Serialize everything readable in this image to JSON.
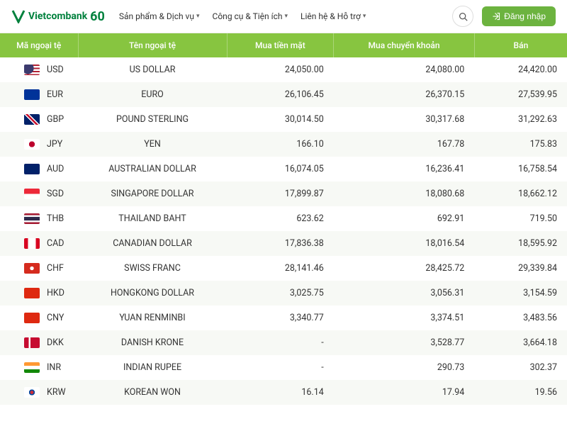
{
  "header": {
    "logo_text": "Vietcombank",
    "logo_badge": "60",
    "nav": [
      {
        "label": "Sản phẩm & Dịch vụ"
      },
      {
        "label": "Công cụ & Tiện ích"
      },
      {
        "label": "Liên hệ & Hỗ trợ"
      }
    ],
    "login_label": "Đăng nhập"
  },
  "table": {
    "columns": [
      "Mã ngoại tệ",
      "Tên ngoại tệ",
      "Mua tiền mặt",
      "Mua chuyển khoản",
      "Bán"
    ],
    "rows": [
      {
        "code": "USD",
        "flag_bg": "linear-gradient(180deg,#b22234 0 15%,#fff 15% 30%,#b22234 30% 45%,#fff 45% 60%,#b22234 60% 75%,#fff 75% 90%,#b22234 90% 100%)",
        "flag_overlay": "radial-gradient(circle at 25% 35%, #3c3b6e 42%, transparent 43%)",
        "name": "US DOLLAR",
        "cash": "24,050.00",
        "transfer": "24,080.00",
        "sell": "24,420.00"
      },
      {
        "code": "EUR",
        "flag_bg": "#003399",
        "name": "EURO",
        "cash": "26,106.45",
        "transfer": "26,370.15",
        "sell": "27,539.95"
      },
      {
        "code": "GBP",
        "flag_bg": "linear-gradient(45deg,#012169 40%,#fff 40% 45%,#c8102e 45% 55%,#fff 55% 60%,#012169 60%)",
        "name": "POUND STERLING",
        "cash": "30,014.50",
        "transfer": "30,317.68",
        "sell": "31,292.63"
      },
      {
        "code": "JPY",
        "flag_bg": "radial-gradient(circle at 50% 50%,#bc002d 30%,#fff 32%)",
        "name": "YEN",
        "cash": "166.10",
        "transfer": "167.78",
        "sell": "175.83"
      },
      {
        "code": "AUD",
        "flag_bg": "#012169",
        "name": "AUSTRALIAN DOLLAR",
        "cash": "16,074.05",
        "transfer": "16,236.41",
        "sell": "16,758.54"
      },
      {
        "code": "SGD",
        "flag_bg": "linear-gradient(180deg,#ed2939 50%,#fff 50%)",
        "name": "SINGAPORE DOLLAR",
        "cash": "17,899.87",
        "transfer": "18,080.68",
        "sell": "18,662.12"
      },
      {
        "code": "THB",
        "flag_bg": "linear-gradient(180deg,#a51931 0 17%,#f4f5f8 17% 33%,#2d2a4a 33% 67%,#f4f5f8 67% 83%,#a51931 83% 100%)",
        "name": "THAILAND BAHT",
        "cash": "623.62",
        "transfer": "692.91",
        "sell": "719.50"
      },
      {
        "code": "CAD",
        "flag_bg": "linear-gradient(90deg,#d80621 0 25%,#fff 25% 75%,#d80621 75% 100%)",
        "name": "CANADIAN DOLLAR",
        "cash": "17,836.38",
        "transfer": "18,016.54",
        "sell": "18,595.92"
      },
      {
        "code": "CHF",
        "flag_bg": "radial-gradient(circle at 50% 50%,#fff 20%,#d52b1e 21%)",
        "name": "SWISS FRANC",
        "cash": "28,141.46",
        "transfer": "28,425.72",
        "sell": "29,339.84"
      },
      {
        "code": "HKD",
        "flag_bg": "#de2910",
        "name": "HONGKONG DOLLAR",
        "cash": "3,025.75",
        "transfer": "3,056.31",
        "sell": "3,154.59"
      },
      {
        "code": "CNY",
        "flag_bg": "#de2910",
        "name": "YUAN RENMINBI",
        "cash": "3,340.77",
        "transfer": "3,374.51",
        "sell": "3,483.56"
      },
      {
        "code": "DKK",
        "flag_bg": "linear-gradient(90deg,#c60c30 0 30%,#fff 30% 42%,#c60c30 42% 100%)",
        "name": "DANISH KRONE",
        "cash": "-",
        "transfer": "3,528.77",
        "sell": "3,664.18"
      },
      {
        "code": "INR",
        "flag_bg": "linear-gradient(180deg,#ff9933 0 33%,#fff 33% 67%,#138808 67% 100%)",
        "name": "INDIAN RUPEE",
        "cash": "-",
        "transfer": "290.73",
        "sell": "302.37"
      },
      {
        "code": "KRW",
        "flag_bg": "radial-gradient(circle at 50% 50%,#cd2e3a 18%,#0047a0 18% 30%,#fff 32%)",
        "name": "KOREAN WON",
        "cash": "16.14",
        "transfer": "17.94",
        "sell": "19.56"
      }
    ]
  },
  "colors": {
    "brand_green": "#00813d",
    "header_green": "#87c540",
    "button_green": "#6cb33f",
    "row_alt": "#f7f9f5"
  }
}
